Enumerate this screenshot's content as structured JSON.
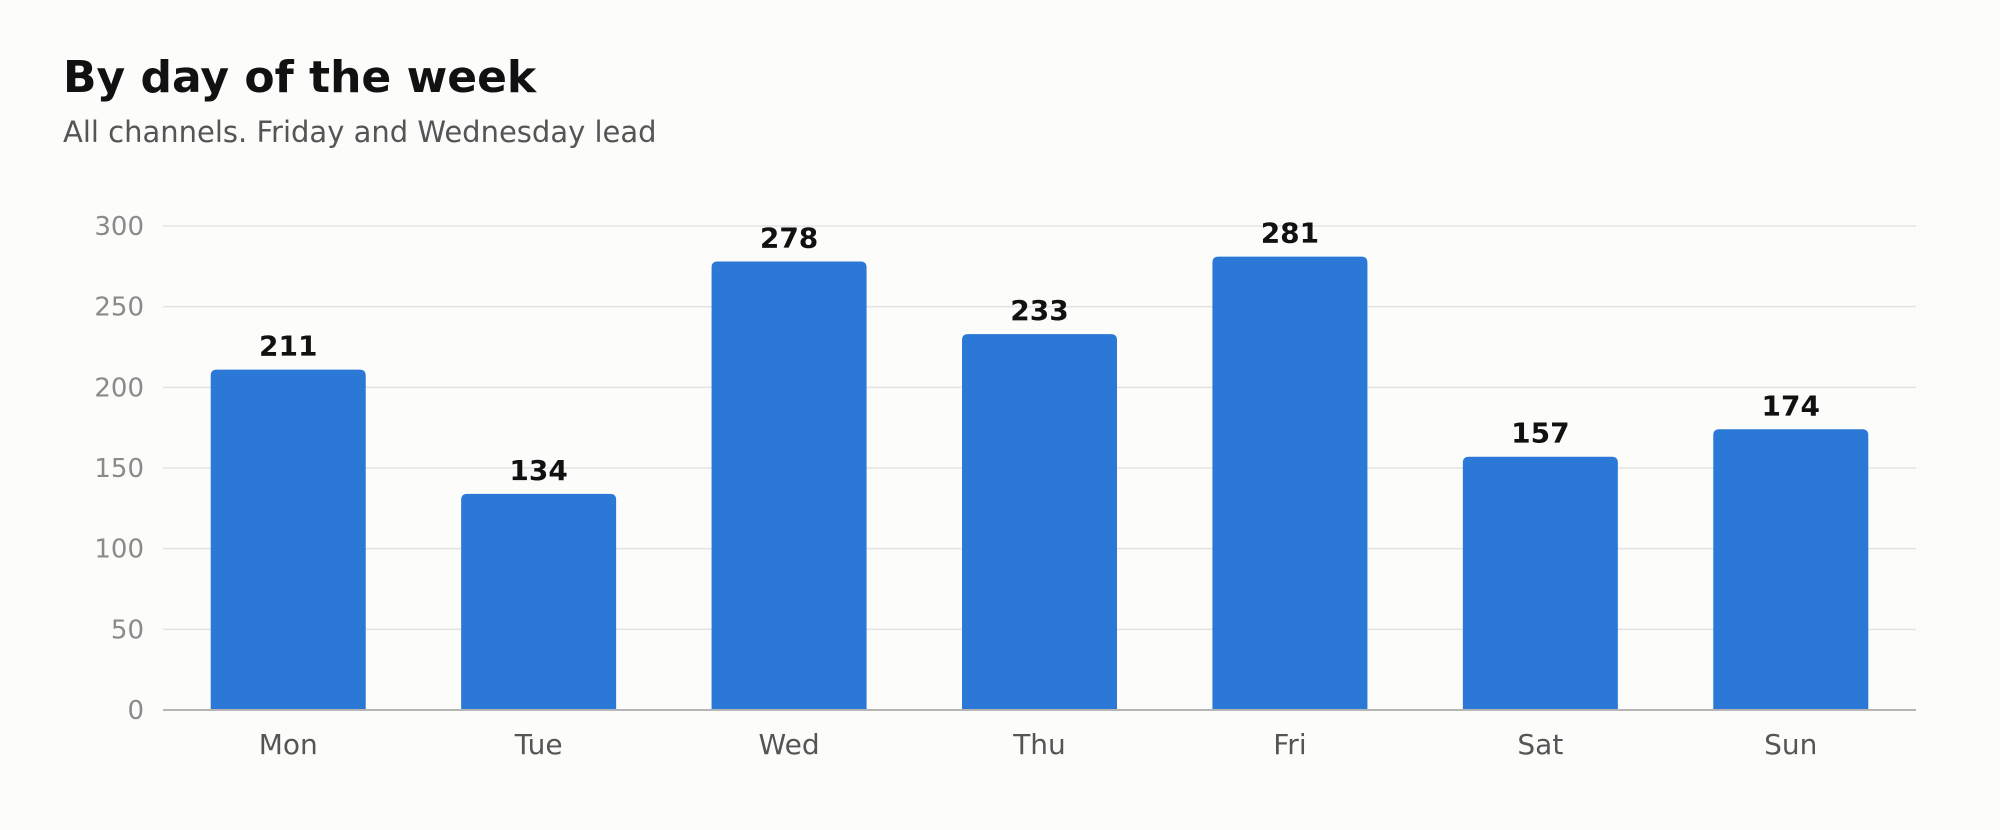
{
  "chart_data": {
    "type": "bar",
    "title": "By day of the week",
    "subtitle": "All channels. Friday and Wednesday lead",
    "categories": [
      "Mon",
      "Tue",
      "Wed",
      "Thu",
      "Fri",
      "Sat",
      "Sun"
    ],
    "values": [
      211,
      134,
      278,
      233,
      281,
      157,
      174
    ],
    "xlabel": "",
    "ylabel": "",
    "ylim": [
      0,
      300
    ],
    "yticks": [
      0,
      50,
      100,
      150,
      200,
      250,
      300
    ],
    "grid": true,
    "legend": "none",
    "bar_color": "#2b78d6",
    "data_labels": true
  }
}
